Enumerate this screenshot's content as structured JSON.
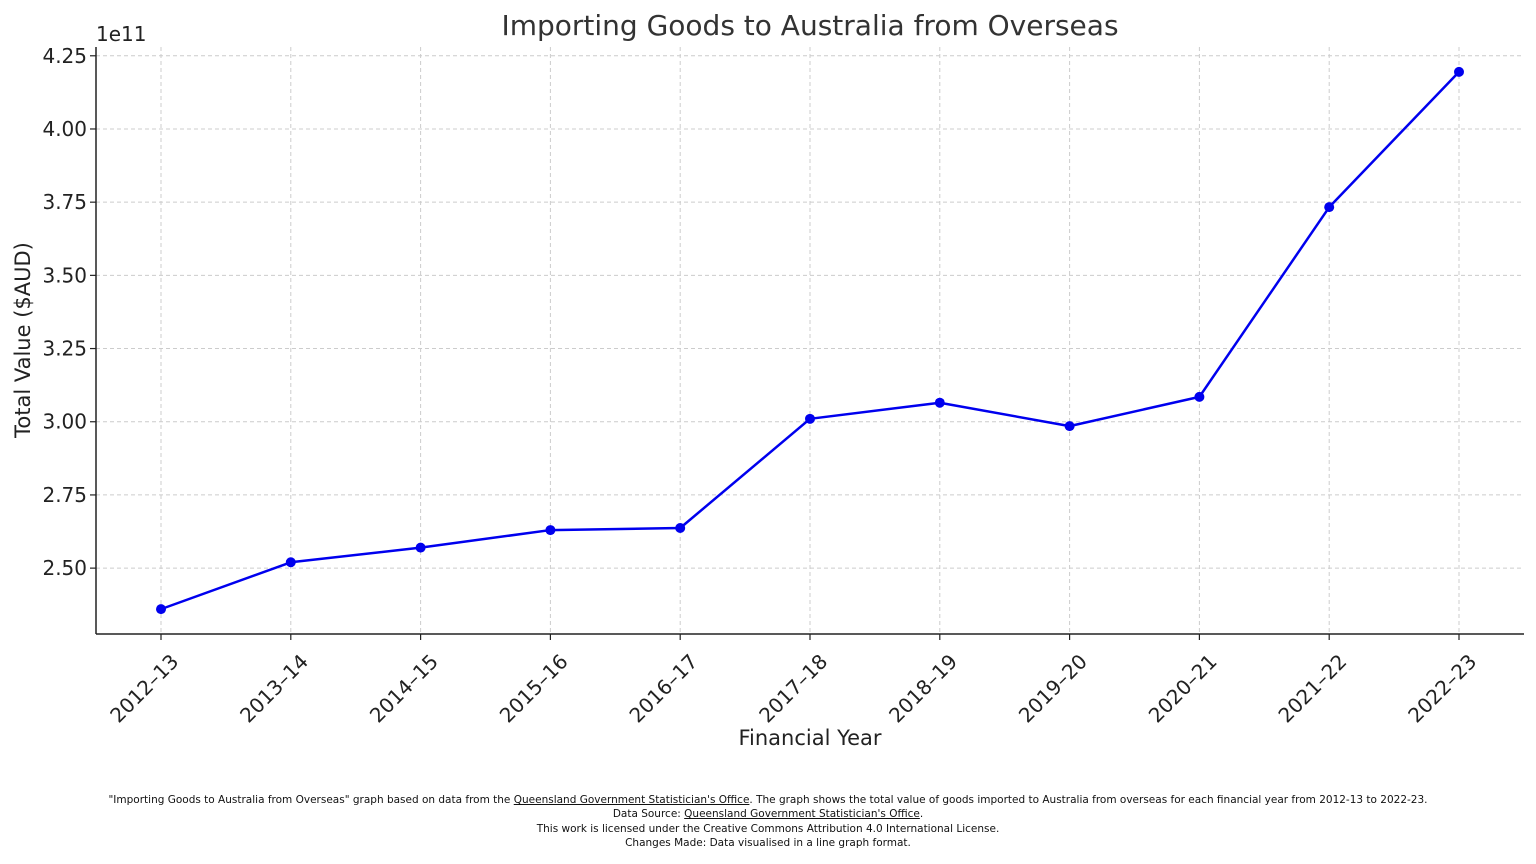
{
  "chart_data": {
    "type": "line",
    "title": "Importing Goods to Australia from Overseas",
    "xlabel": "Financial Year",
    "ylabel": "Total Value ($AUD)",
    "y_offset_label": "1e11",
    "y_multiplier": 100000000000,
    "categories": [
      "2012–13",
      "2013–14",
      "2014–15",
      "2015–16",
      "2016–17",
      "2017–18",
      "2018–19",
      "2019–20",
      "2020–21",
      "2021–22",
      "2022–23"
    ],
    "series": [
      {
        "values": [
          236000000000,
          252000000000,
          257000000000,
          263000000000,
          263700000000,
          301000000000,
          306500000000,
          298500000000,
          308500000000,
          373300000000,
          419500000000
        ]
      }
    ],
    "ylim": [
      2.275,
      4.28
    ],
    "yticks": [
      2.5,
      2.75,
      3.0,
      3.25,
      3.5,
      3.75,
      4.0,
      4.25
    ],
    "ytick_labels": [
      "2.50",
      "2.75",
      "3.00",
      "3.25",
      "3.50",
      "3.75",
      "4.00",
      "4.25"
    ],
    "grid": true,
    "line_color": "#0000ee",
    "marker": "circle"
  },
  "footer": {
    "line1_pre": "\"Importing Goods to Australia from Overseas\" graph based on data from the ",
    "line1_link": "Queensland Government Statistician's Office",
    "line1_post": ". The graph shows the total value of goods imported to Australia from overseas for each financial year from 2012-13 to 2022-23.",
    "line2_pre": "Data Source: ",
    "line2_link": "Queensland Government Statistician's Office",
    "line2_post": ".",
    "line3": "This work is licensed under the Creative Commons Attribution 4.0 International License.",
    "line4": "Changes Made: Data visualised in a line graph format."
  }
}
